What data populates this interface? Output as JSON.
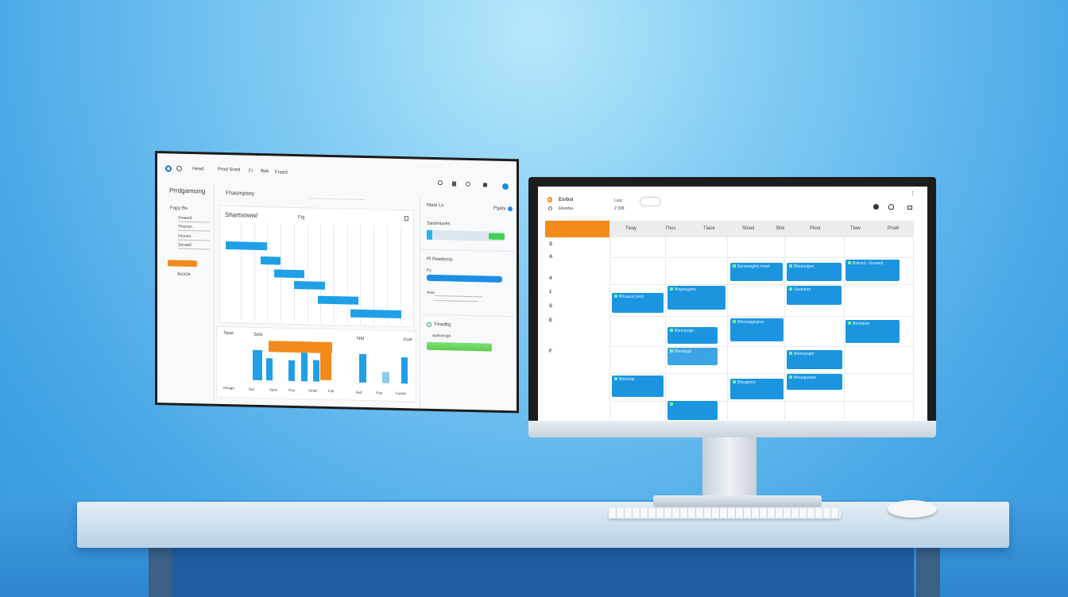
{
  "left_screen": {
    "topbar": {
      "items": [
        "Head",
        "Prod Sned",
        "Fr",
        "Bak",
        "Fraed"
      ]
    },
    "sidebar": {
      "title": "Prrdgamsing",
      "items": [
        "Fapy Bs",
        "Snaeed",
        "Tinonen",
        "Hronen",
        "Senaidl",
        "Ausce"
      ],
      "accent": "#f28a1c"
    },
    "gantt": {
      "search_label": "Fhasmpsoy",
      "title": "Shartsoww/",
      "column": "Fig"
    },
    "bottom_chart": {
      "labels": [
        "Tase",
        "Sols",
        "Ntd",
        "Kue"
      ],
      "x_labels": [
        "Mnago",
        "Nai",
        "Spes",
        "Ruo",
        "Smeil",
        "Fail",
        "Bull",
        "Fise",
        "Fused"
      ]
    },
    "right_panel": {
      "header": "Mate Ls",
      "header_action": "Pgaty",
      "card1_title": "Sastmuses",
      "card2_title": "Pl Reedsmp",
      "card2_sub": "Py",
      "card2_note": "Awa",
      "card3_title": "Tinadbg",
      "card3_item": "apaloeuge"
    }
  },
  "calendar": {
    "brand": "Esrbsl",
    "sub": "Ebesfau",
    "range_label": "Lusc",
    "range_value": "2 308",
    "days": [
      "Tway",
      "Thus",
      "Tlace",
      "Stsed",
      "Bnk",
      "Plost",
      "Tlaw",
      "Pnatt"
    ],
    "row_labels": [
      "S",
      "A",
      "4",
      "1",
      "S",
      "E",
      "F"
    ],
    "events": [
      "Bpnssmghrt rmnst",
      "Bhesnutpnr",
      "Bsinsol - Gorsast",
      "Bhusuuy pred",
      "Bhgnsagnnt",
      "Ssonduer",
      "Bihsnoggnpres",
      "Bhmnpoge",
      "Bhnstpoe",
      "Bhmasgrl",
      "Bhmnpoger",
      "Bhsmogr",
      "Bhsagmre",
      "Bhsnapsaoe"
    ],
    "accent": "#f28a1c",
    "event_color": "#1b95e0"
  }
}
